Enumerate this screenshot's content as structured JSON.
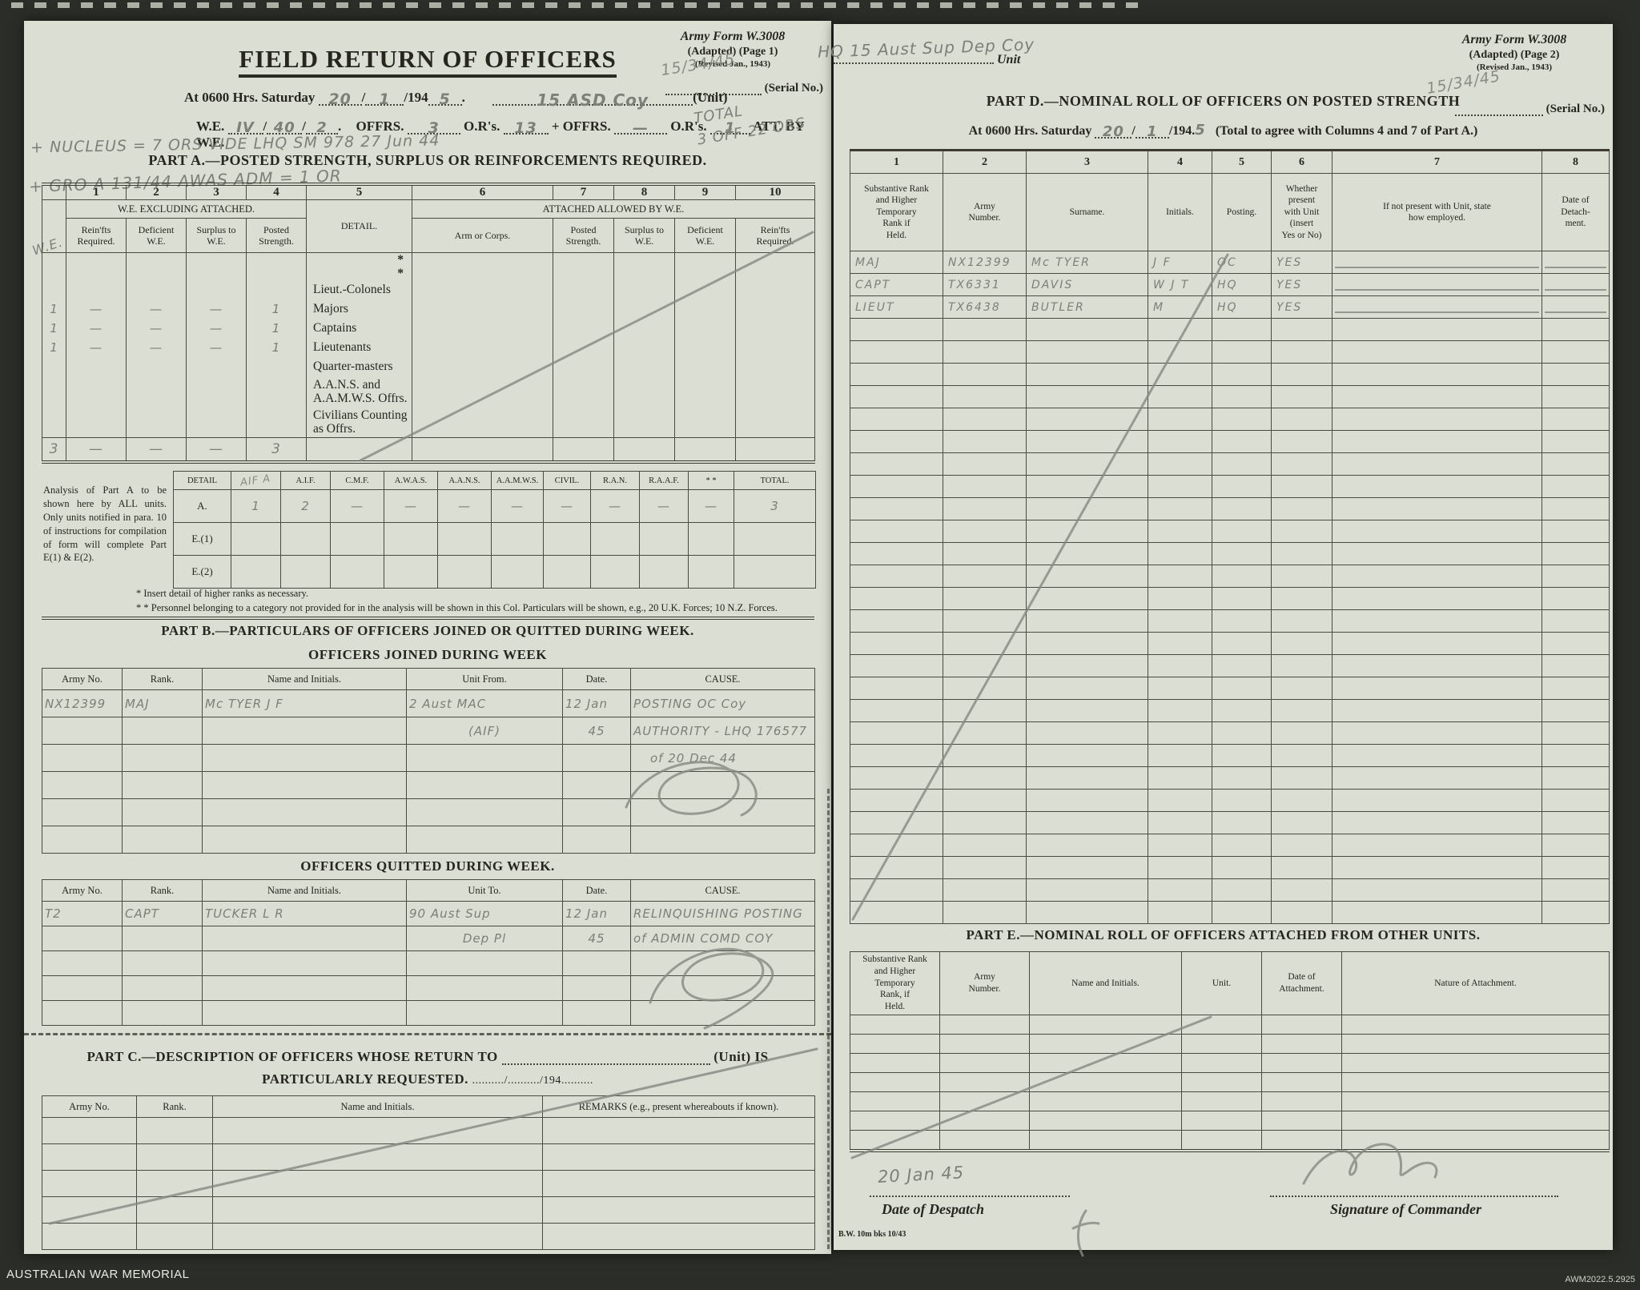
{
  "scan": {
    "archive_label": "AUSTRALIAN WAR MEMORIAL",
    "catalog_number": "AWM2022.5.2925"
  },
  "page1": {
    "form_ref_line1": "Army Form W.3008",
    "form_ref_line2": "(Adapted)  (Page 1)",
    "form_ref_line3": "(Revised Jan., 1943)",
    "serial_hw": "15/34/45",
    "serial_label": "(Serial No.)",
    "title": "FIELD RETURN OF OFFICERS",
    "at_line": {
      "prefix": "At 0600 Hrs. Saturday",
      "hw_day": "20",
      "slash1": "/",
      "hw_month": "1",
      "year": "/194",
      "hw_year": "5",
      "dot": ".",
      "hw_unit": "15 ASD Coy",
      "unit_label": "(Unit)"
    },
    "we_line": {
      "label": "W.E.",
      "hw1": "IV",
      "s1": "/",
      "hw2": "40",
      "s2": "/",
      "hw3": "2",
      "dot": ".",
      "offrs": "OFFRS.",
      "hw_offrs": "3",
      "ors": "O.R's.",
      "hw_ors": "13",
      "plus": "+",
      "offrs2": "OFFRS.",
      "hw_offrs2": "—",
      "ors2": "O.R's.",
      "hw_ors2": "1",
      "att": "ATT. BY W.E."
    },
    "hw_nucleus": "+ NUCLEUS = 7 ORS   VIDE LHQ SM 978   27 Jun 44",
    "part_a_title": "PART A.—POSTED STRENGTH, SURPLUS OR REINFORCEMENTS REQUIRED.",
    "hw_gro": "+ GRO A 131/44  AWAS ADM = 1 OR",
    "hw_total_line1": "TOTAL",
    "hw_total_line2": "3 OFF  22 ORS",
    "part_a": {
      "col_numbers": [
        "1",
        "2",
        "3",
        "4",
        "5",
        "6",
        "7",
        "8",
        "9",
        "10"
      ],
      "group_we": "W.E. EXCLUDING ATTACHED.",
      "group_att": "ATTACHED ALLOWED BY W.E.",
      "sub_c1": "Rein'fts\nRequired.",
      "sub_c2": "Deficient\nW.E.",
      "sub_c3": "Surplus to\nW.E.",
      "sub_c4": "Posted\nStrength.",
      "sub_c5": "DETAIL.",
      "sub_c6": "Arm or Corps.",
      "sub_c7": "Posted\nStrength.",
      "sub_c8": "Surplus to\nW.E.",
      "sub_c9": "Deficient\nW.E.",
      "sub_c10": "Rein'fts\nRequired.",
      "margin_hw": "W.E.",
      "star": "*",
      "detail_rows": [
        {
          "label": "Lieut.-Colonels",
          "m": "",
          "c1": "",
          "c2": "",
          "c3": "",
          "c4": ""
        },
        {
          "label": "Majors",
          "m": "1",
          "c1": "—",
          "c2": "—",
          "c3": "—",
          "c4": "1"
        },
        {
          "label": "Captains",
          "m": "1",
          "c1": "—",
          "c2": "—",
          "c3": "—",
          "c4": "1"
        },
        {
          "label": "Lieutenants",
          "m": "1",
          "c1": "—",
          "c2": "—",
          "c3": "—",
          "c4": "1"
        },
        {
          "label": "Quarter-masters",
          "m": "",
          "c1": "",
          "c2": "",
          "c3": "",
          "c4": ""
        },
        {
          "label": "A.A.N.S. and\n   A.A.M.W.S. Offrs.",
          "m": "",
          "c1": "",
          "c2": "",
          "c3": "",
          "c4": ""
        },
        {
          "label": "Civilians Counting\n   as Offrs.",
          "m": "",
          "c1": "",
          "c2": "",
          "c3": "",
          "c4": ""
        }
      ],
      "total_row": {
        "m": "3",
        "c1": "—",
        "c2": "—",
        "c3": "—",
        "c4": "3"
      }
    },
    "analysis": {
      "note": "Analysis of Part A to be shown here by ALL units. Only units notified in para. 10 of instructions for compilation of form will complete Part E(1) & E(2).",
      "hw_note": "AIF A",
      "headers": [
        "DETAIL",
        "",
        "A.I.F.",
        "C.M.F.",
        "A.W.A.S.",
        "A.A.N.S.",
        "A.A.M.W.S.",
        "CIVIL.",
        "R.A.N.",
        "R.A.A.F.",
        "* *",
        "TOTAL."
      ],
      "row_a_label": "A.",
      "row_a": [
        "1",
        "2",
        "—",
        "—",
        "—",
        "—",
        "—",
        "—",
        "—",
        "—",
        "3"
      ],
      "row_e1_label": "E.(1)",
      "row_e2_label": "E.(2)",
      "footnote1": "* Insert detail of higher ranks as necessary.",
      "footnote2": "* * Personnel belonging to a category not provided for in the analysis will be shown in this Col.  Particulars will be shown, e.g., 20 U.K. Forces; 10 N.Z. Forces."
    },
    "part_b": {
      "title": "PART B.—PARTICULARS OF OFFICERS JOINED OR QUITTED DURING WEEK.",
      "joined_title": "OFFICERS JOINED DURING WEEK",
      "headers": [
        "Army No.",
        "Rank.",
        "Name and Initials.",
        "Unit From.",
        "Date.",
        "CAUSE."
      ],
      "joined_rows": [
        [
          "NX12399",
          "MAJ",
          "Mc TYER  J F",
          "2 Aust MAC",
          "12 Jan",
          "POSTING  OC  Coy"
        ],
        [
          "",
          "",
          "",
          "(AIF)",
          "45",
          "AUTHORITY - LHQ 176577"
        ],
        [
          "",
          "",
          "",
          "",
          "",
          "of 20 Dec 44"
        ]
      ],
      "quitted_title": "OFFICERS QUITTED DURING WEEK.",
      "quitted_headers": [
        "Army No.",
        "Rank.",
        "Name and Initials.",
        "Unit To.",
        "Date.",
        "CAUSE."
      ],
      "quitted_rows": [
        [
          "T2",
          "CAPT",
          "TUCKER  L R",
          "90 Aust Sup",
          "12 Jan",
          "RELINQUISHING  POSTING"
        ],
        [
          "",
          "",
          "",
          "Dep Pl",
          "45",
          "of ADMIN COMD COY"
        ]
      ]
    },
    "part_c": {
      "title_prefix": "PART C.—DESCRIPTION OF OFFICERS WHOSE RETURN TO",
      "title_unit_label": "(Unit) IS",
      "title_line2": "PARTICULARLY REQUESTED.",
      "date_blank": "........../........../194..........",
      "headers": [
        "Army No.",
        "Rank.",
        "Name and Initials.",
        "REMARKS (e.g., present whereabouts if known)."
      ]
    }
  },
  "page2": {
    "hw_unit": "HQ 15 Aust Sup Dep Coy",
    "unit_label": "Unit",
    "form_ref_line1": "Army Form W.3008",
    "form_ref_line2": "(Adapted)  (Page 2)",
    "form_ref_line3": "(Revised Jan., 1943)",
    "serial_hw": "15/34/45",
    "serial_label": "(Serial No.)",
    "part_d": {
      "title": "PART D.—NOMINAL ROLL OF OFFICERS ON POSTED STRENGTH",
      "at_prefix": "At 0600 Hrs. Saturday",
      "hw_day": "20",
      "hw_month": "1",
      "year": "/194.",
      "hw_year": "5",
      "at_suffix": "(Total to agree with Columns 4 and 7 of Part A.)",
      "col_numbers": [
        "1",
        "2",
        "3",
        "4",
        "5",
        "6",
        "7",
        "8"
      ],
      "headers": [
        "Substantive Rank\nand Higher\nTemporary\nRank if\nHeld.",
        "Army\nNumber.",
        "Surname.",
        "Initials.",
        "Posting.",
        "Whether\npresent\nwith Unit\n(insert\nYes or No)",
        "If not present with Unit, state\nhow employed.",
        "Date of\nDetach-\nment."
      ],
      "rows": [
        [
          "MAJ",
          "NX12399",
          "Mc TYER",
          "J F",
          "OC",
          "YES"
        ],
        [
          "CAPT",
          "TX6331",
          "DAVIS",
          "W J T",
          "HQ",
          "YES"
        ],
        [
          "LIEUT",
          "TX6438",
          "BUTLER",
          "M",
          "HQ",
          "YES"
        ]
      ]
    },
    "part_e": {
      "title": "PART E.—NOMINAL ROLL OF OFFICERS ATTACHED FROM OTHER UNITS.",
      "headers": [
        "Substantive Rank\nand Higher\nTemporary\nRank, if\nHeld.",
        "Army\nNumber.",
        "Name and Initials.",
        "Unit.",
        "Date of\nAttachment.",
        "Nature of Attachment."
      ]
    },
    "footer": {
      "hw_despatch_date": "20 Jan 45",
      "despatch_label": "Date of Despatch",
      "signature_label": "Signature of Commander",
      "print_code": "B.W. 10m bks 10/43"
    }
  }
}
